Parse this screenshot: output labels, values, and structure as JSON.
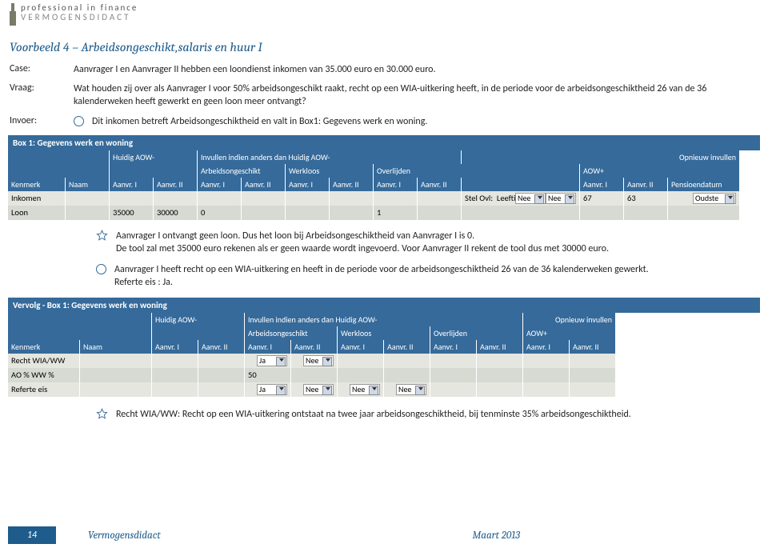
{
  "header": {
    "logo_top": "professional in finance",
    "logo_bottom": "VERMOGENSDIDACT"
  },
  "title": "Voorbeeld 4 – Arbeidsongeschikt,salaris en huur I",
  "labels": {
    "case": "Case:",
    "vraag": "Vraag:",
    "invoer": "Invoer:"
  },
  "case_text": "Aanvrager I en Aanvrager II hebben een loondienst inkomen van 35.000 euro en 30.000 euro.",
  "vraag_text": "Wat houden zij over als Aanvrager I voor 50% arbeidsongeschikt raakt, recht op een WIA-uitkering heeft, in de periode voor de arbeidsongeschiktheid 26 van de 36 kalenderweken heeft gewerkt en geen loon meer ontvangt?",
  "invoer_text": "Dit inkomen betreft Arbeidsongeschiktheid en valt in Box1: Gegevens werk en woning.",
  "star1_text": "Aanvrager I ontvangt geen loon. Dus het loon bij Arbeidsongeschiktheid van Aanvrager I is 0.\nDe tool zal met 35000 euro rekenen als er geen waarde wordt ingevoerd. Voor Aanvrager II rekent de tool dus met 30000 euro.",
  "circle1_text": "Aanvrager I heeft recht op een WIA-uitkering en heeft in de periode voor de arbeidsongeschiktheid 26 van de 36 kalenderweken gewerkt. Referte eis : Ja.",
  "star2_text": "Recht WIA/WW: Recht op een WIA-uitkering ontstaat na twee jaar arbeidsongeschiktheid, bij tenminste 35% arbeidsongeschiktheid.",
  "table1": {
    "title": "Box 1: Gegevens werk en woning",
    "group_headers": [
      "",
      "Huidig AOW-",
      "Invullen indien anders dan Huidig AOW-",
      "",
      "",
      "Opnieuw invullen"
    ],
    "group2": [
      "",
      "",
      "Arbeidsongeschikt",
      "Werkloos",
      "Overlijden",
      "AOW+"
    ],
    "cols": [
      "Kenmerk",
      "Naam",
      "Aanvr. I",
      "Aanvr. II",
      "Aanvr. I",
      "Aanvr. II",
      "Aanvr. I",
      "Aanvr. II",
      "Aanvr. I",
      "Aanvr. II",
      "",
      "Aanvr. I",
      "Aanvr. II",
      "Pensioendatum"
    ],
    "rows": [
      {
        "cells": [
          "Inkomen",
          "",
          "",
          "",
          "",
          "",
          "",
          "",
          "",
          "",
          "Stel Ovl:  Nee | Nee    Leeftijd:",
          "67",
          "63",
          "Oudste"
        ],
        "alt": false
      },
      {
        "cells": [
          "Loon",
          "",
          "35000",
          "30000",
          "0",
          "",
          "",
          "",
          "1",
          "",
          "",
          "",
          "",
          ""
        ],
        "alt": true
      }
    ],
    "select_nee": "Nee",
    "select_oudste": "Oudste"
  },
  "table2": {
    "title": "Vervolg - Box 1: Gegevens werk en woning",
    "group_headers": [
      "",
      "Huidig AOW-",
      "Invullen indien anders dan Huidig AOW-",
      "",
      "",
      "Opnieuw invullen"
    ],
    "group2": [
      "",
      "",
      "Arbeidsongeschikt",
      "Werkloos",
      "Overlijden",
      "AOW+"
    ],
    "cols": [
      "Kenmerk",
      "Naam",
      "Aanvr. I",
      "Aanvr. II",
      "Aanvr. I",
      "Aanvr. II",
      "Aanvr. I",
      "Aanvr. II",
      "Aanvr. I",
      "Aanvr. II",
      "Aanvr. I",
      "Aanvr. II"
    ],
    "rows": [
      {
        "cells": [
          "Recht WIA/WW",
          "",
          "",
          "",
          "Ja",
          "Nee",
          "",
          "",
          "",
          "",
          "",
          ""
        ],
        "alt": false,
        "selects": [
          4,
          5
        ]
      },
      {
        "cells": [
          "AO % WW %",
          "",
          "",
          "",
          "50",
          "",
          "",
          "",
          "",
          "",
          "",
          ""
        ],
        "alt": true
      },
      {
        "cells": [
          "Referte eis",
          "",
          "",
          "",
          "Ja",
          "Nee",
          "Nee",
          "Nee",
          "",
          "",
          "",
          ""
        ],
        "alt": false,
        "selects": [
          4,
          5,
          6,
          7
        ]
      }
    ]
  },
  "footer": {
    "page": "14",
    "left": "Vermogensdidact",
    "right": "Maart 2013"
  },
  "colors": {
    "accent": "#1f5c8b",
    "table_header": "#356a9a",
    "row_bg": "#e6e6e0",
    "row_alt": "#d6dad3"
  }
}
